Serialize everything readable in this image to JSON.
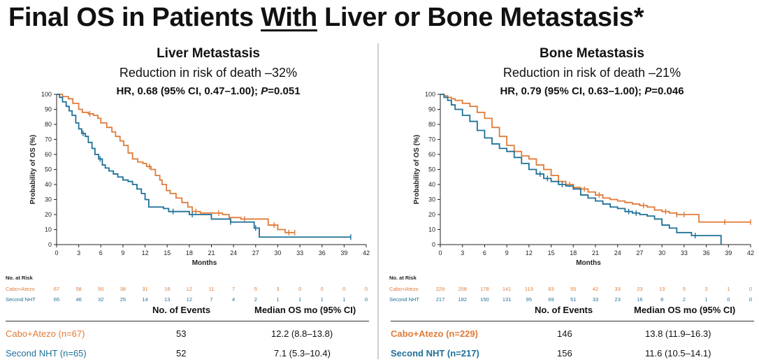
{
  "page": {
    "title_pre": "Final OS in Patients ",
    "title_em": "With",
    "title_post": " Liver or Bone Metastasis*"
  },
  "colors": {
    "orange": "#E07B39",
    "blue": "#1E7098",
    "axis": "#222222"
  },
  "chart_data": [
    {
      "type": "line",
      "id": "liver",
      "title": "Liver Metastasis",
      "subtitle": "Reduction in risk of death –32%",
      "hr_pre": "HR, 0.68 (95% CI, 0.47–1.00); ",
      "hr_p": "P",
      "hr_post": "=0.051",
      "xlabel": "Months",
      "ylabel": "Probability of OS (%)",
      "xlim": [
        0,
        42
      ],
      "ylim": [
        0,
        100
      ],
      "xticks": [
        0,
        3,
        6,
        9,
        12,
        15,
        18,
        21,
        24,
        27,
        30,
        33,
        36,
        39,
        42
      ],
      "yticks": [
        0,
        10,
        20,
        30,
        40,
        50,
        60,
        70,
        80,
        90,
        100
      ],
      "series": [
        {
          "name": "Cabo+Atezo",
          "color": "#E07B39",
          "x": [
            0,
            0.8,
            1.6,
            2.2,
            3.0,
            3.5,
            4.3,
            5.0,
            5.6,
            6.0,
            6.8,
            7.5,
            8.0,
            8.6,
            9.1,
            9.7,
            10.3,
            11.0,
            11.7,
            12.2,
            12.8,
            13.4,
            14.0,
            14.3,
            14.9,
            15.4,
            16.2,
            17.0,
            17.8,
            18.4,
            19.5,
            21.0,
            22.5,
            23.4,
            25.0,
            27.0,
            28.7,
            30.0,
            31.0,
            32.3
          ],
          "y": [
            100,
            98.5,
            97,
            94,
            90,
            88,
            87,
            86,
            84,
            81,
            78,
            75,
            72,
            69,
            66,
            61,
            57,
            55,
            54,
            52,
            50,
            46,
            43,
            40,
            36,
            34,
            31,
            28,
            25,
            22,
            21,
            21,
            20,
            18,
            17,
            17,
            13,
            10,
            8,
            8
          ],
          "censor_x": [
            4.5,
            12.6,
            18.9,
            22.0,
            25.5,
            29.5,
            31.5,
            32.3
          ]
        },
        {
          "name": "Second NHT",
          "color": "#1E7098",
          "x": [
            0,
            0.4,
            0.8,
            1.3,
            1.7,
            2.1,
            2.6,
            3.0,
            3.4,
            3.9,
            4.3,
            4.8,
            5.2,
            5.7,
            6.2,
            6.6,
            7.1,
            7.7,
            8.3,
            9.0,
            9.7,
            10.3,
            10.9,
            11.5,
            12.0,
            12.5,
            13.5,
            14.5,
            15.2,
            16.5,
            18.0,
            21.0,
            23.6,
            26.8,
            27.5,
            32.0,
            39.9
          ],
          "y": [
            100,
            98,
            95,
            92,
            89,
            86,
            81,
            77,
            74,
            72,
            68,
            64,
            60,
            57,
            53,
            51,
            49,
            47,
            45,
            43,
            42,
            40,
            37,
            34,
            30,
            25,
            25,
            24,
            22,
            22,
            20,
            17,
            15,
            11,
            5,
            5,
            5
          ],
          "censor_x": [
            3.6,
            5.9,
            15.8,
            18.4,
            23.6,
            27.0,
            39.9
          ]
        }
      ],
      "risk_header": "No. at Risk",
      "risk_times": [
        0,
        3,
        6,
        9,
        12,
        15,
        18,
        21,
        24,
        27,
        30,
        33,
        36,
        39,
        42
      ],
      "risk_rows": [
        {
          "label": "Cabo+Atezo",
          "values": [
            "67",
            "58",
            "50",
            "38",
            "31",
            "18",
            "12",
            "11",
            "7",
            "5",
            "3",
            "0",
            "0",
            "0",
            "0"
          ]
        },
        {
          "label": "Second NHT",
          "values": [
            "65",
            "46",
            "32",
            "25",
            "14",
            "13",
            "12",
            "7",
            "4",
            "2",
            "1",
            "1",
            "1",
            "1",
            "0"
          ]
        }
      ],
      "table": {
        "col_events": "No. of Events",
        "col_median": "Median OS mo (95% CI)",
        "rows": [
          {
            "label": "Cabo+Atezo (n=67)",
            "events": "53",
            "median": "12.2 (8.8–13.8)"
          },
          {
            "label": "Second NHT (n=65)",
            "events": "52",
            "median": "7.1 (5.3–10.4)"
          }
        ]
      }
    },
    {
      "type": "line",
      "id": "bone",
      "title": "Bone Metastasis",
      "subtitle": "Reduction in risk of death –21%",
      "hr_pre": "HR, 0.79 (95% CI, 0.63–1.00); ",
      "hr_p": "P",
      "hr_post": "=0.046",
      "xlabel": "Months",
      "ylabel": "Probability of OS (%)",
      "xlim": [
        0,
        42
      ],
      "ylim": [
        0,
        100
      ],
      "xticks": [
        0,
        3,
        6,
        9,
        12,
        15,
        18,
        21,
        24,
        27,
        30,
        33,
        36,
        39,
        42
      ],
      "yticks": [
        0,
        10,
        20,
        30,
        40,
        50,
        60,
        70,
        80,
        90,
        100
      ],
      "series": [
        {
          "name": "Cabo+Atezo",
          "color": "#E07B39",
          "x": [
            0,
            0.5,
            1.0,
            1.5,
            2.0,
            3.0,
            4.0,
            5.0,
            6.0,
            7.0,
            8.0,
            9.0,
            10.0,
            11.0,
            12.0,
            13.0,
            14.0,
            15.0,
            16.0,
            17.0,
            18.0,
            19.0,
            20.0,
            21.0,
            22.0,
            23.0,
            24.0,
            25.0,
            26.0,
            27.0,
            28.0,
            29.0,
            30.0,
            31.0,
            32.0,
            33.5,
            35.0,
            38.0,
            42.0
          ],
          "y": [
            100,
            99,
            98,
            97,
            96,
            94,
            92,
            88,
            84,
            78,
            72,
            66,
            62,
            59,
            57,
            53,
            50,
            46,
            42,
            40,
            38,
            37,
            35,
            33,
            31,
            30,
            29,
            28,
            27,
            26,
            25,
            23,
            22,
            21,
            20,
            20,
            15,
            15,
            15
          ],
          "censor_x": [
            17.5,
            19.5,
            21.5,
            27.5,
            30.5,
            32.0,
            33.0,
            38.5,
            42.0
          ]
        },
        {
          "name": "Second NHT",
          "color": "#1E7098",
          "x": [
            0,
            0.5,
            1.0,
            1.5,
            2.0,
            3.0,
            4.0,
            5.0,
            6.0,
            7.0,
            8.0,
            9.0,
            10.0,
            11.0,
            12.0,
            13.0,
            14.0,
            15.0,
            16.0,
            17.0,
            18.0,
            19.0,
            20.0,
            21.0,
            22.0,
            23.0,
            24.0,
            25.0,
            26.0,
            27.0,
            28.0,
            29.0,
            30.0,
            31.0,
            32.0,
            34.0,
            37.0,
            38.0
          ],
          "y": [
            100,
            98,
            96,
            93,
            90,
            86,
            82,
            76,
            71,
            67,
            64,
            62,
            58,
            54,
            50,
            47,
            44,
            42,
            40,
            39,
            37,
            33,
            31,
            29,
            27,
            25,
            24,
            22,
            21,
            20,
            19,
            17,
            13,
            11,
            8,
            6,
            6,
            0
          ],
          "censor_x": [
            13.5,
            14.5,
            16.5,
            25.5,
            26.5,
            34.5
          ]
        }
      ],
      "risk_header": "No. at Risk",
      "risk_times": [
        0,
        3,
        6,
        9,
        12,
        15,
        18,
        21,
        24,
        27,
        30,
        33,
        36,
        39,
        42
      ],
      "risk_rows": [
        {
          "label": "Cabo+Atezo",
          "values": [
            "229",
            "208",
            "178",
            "141",
            "113",
            "83",
            "55",
            "42",
            "33",
            "23",
            "13",
            "5",
            "2",
            "1",
            "0"
          ]
        },
        {
          "label": "Second NHT",
          "values": [
            "217",
            "182",
            "150",
            "131",
            "95",
            "69",
            "51",
            "33",
            "23",
            "16",
            "9",
            "2",
            "1",
            "0",
            "0"
          ]
        }
      ],
      "table": {
        "col_events": "No. of Events",
        "col_median": "Median OS mo (95% CI)",
        "rows": [
          {
            "label": "Cabo+Atezo (n=229)",
            "events": "146",
            "median": "13.8 (11.9–16.3)"
          },
          {
            "label": "Second NHT (n=217)",
            "events": "156",
            "median": "11.6 (10.5–14.1)"
          }
        ]
      }
    }
  ]
}
